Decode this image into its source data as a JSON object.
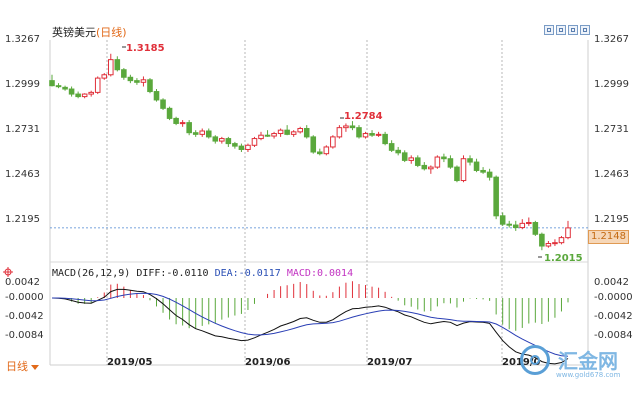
{
  "title": {
    "symbol": "英镑美元",
    "period": "(日线)"
  },
  "price_axis": [
    "1.3267",
    "1.2999",
    "1.2731",
    "1.2463",
    "1.2195"
  ],
  "current_price": "1.2148",
  "annotations": {
    "high1": "1.3185",
    "high2": "1.2784",
    "low": "1.2015"
  },
  "macd_header": {
    "params": "MACD(26,12,9)",
    "diff": "DIFF:-0.0110",
    "dea": "DEA:-0.0117",
    "macd": "MACD:0.0014"
  },
  "macd_axis": [
    "0.0042",
    "-0.0000",
    "-0.0042",
    "-0.0084"
  ],
  "dates": [
    "2019/05",
    "2019/06",
    "2019/07",
    "2019/0"
  ],
  "period_tab": "日线",
  "watermark": {
    "brand": "汇金网",
    "url": "www.gold678.com"
  },
  "colors": {
    "up": "#e0303a",
    "down": "#5aa83c",
    "diff_line": "#111111",
    "dea_line": "#2a3fb5",
    "grid": "#9a9a9a",
    "accent": "#e26a1a"
  },
  "chart_data": {
    "type": "candlestick",
    "title": "英镑美元(日线)",
    "ylim": [
      1.2015,
      1.3267
    ],
    "yticks": [
      1.3267,
      1.2999,
      1.2731,
      1.2463,
      1.2195
    ],
    "annotated_high": [
      1.3185,
      1.2784
    ],
    "annotated_low": 1.2015,
    "last_close": 1.2148,
    "x_labels": [
      "2019/05",
      "2019/06",
      "2019/07",
      "2019/0"
    ],
    "candles": [
      [
        1.3025,
        1.306,
        1.299,
        1.2995
      ],
      [
        1.2995,
        1.301,
        1.298,
        1.299
      ],
      [
        1.2985,
        1.2995,
        1.2965,
        1.2975
      ],
      [
        1.2975,
        1.299,
        1.293,
        1.2945
      ],
      [
        1.2945,
        1.296,
        1.292,
        1.293
      ],
      [
        1.293,
        1.295,
        1.292,
        1.2945
      ],
      [
        1.2945,
        1.2965,
        1.293,
        1.2955
      ],
      [
        1.2955,
        1.305,
        1.2945,
        1.304
      ],
      [
        1.304,
        1.307,
        1.303,
        1.306
      ],
      [
        1.306,
        1.3185,
        1.305,
        1.315
      ],
      [
        1.315,
        1.317,
        1.308,
        1.309
      ],
      [
        1.309,
        1.31,
        1.303,
        1.3045
      ],
      [
        1.3045,
        1.306,
        1.301,
        1.3025
      ],
      [
        1.3025,
        1.304,
        1.3,
        1.3015
      ],
      [
        1.3015,
        1.305,
        1.299,
        1.303
      ],
      [
        1.303,
        1.304,
        1.295,
        1.296
      ],
      [
        1.296,
        1.2975,
        1.29,
        1.291
      ],
      [
        1.291,
        1.292,
        1.285,
        1.286
      ],
      [
        1.286,
        1.287,
        1.279,
        1.28
      ],
      [
        1.28,
        1.281,
        1.276,
        1.277
      ],
      [
        1.277,
        1.279,
        1.275,
        1.2775
      ],
      [
        1.2775,
        1.279,
        1.27,
        1.2715
      ],
      [
        1.2715,
        1.273,
        1.269,
        1.2705
      ],
      [
        1.2705,
        1.274,
        1.269,
        1.2725
      ],
      [
        1.2725,
        1.274,
        1.268,
        1.269
      ],
      [
        1.269,
        1.27,
        1.265,
        1.2665
      ],
      [
        1.2665,
        1.269,
        1.265,
        1.268
      ],
      [
        1.268,
        1.269,
        1.263,
        1.265
      ],
      [
        1.265,
        1.266,
        1.262,
        1.2635
      ],
      [
        1.2635,
        1.265,
        1.26,
        1.2615
      ],
      [
        1.2615,
        1.265,
        1.26,
        1.264
      ],
      [
        1.264,
        1.269,
        1.263,
        1.268
      ],
      [
        1.268,
        1.272,
        1.267,
        1.27
      ],
      [
        1.27,
        1.273,
        1.269,
        1.2695
      ],
      [
        1.2695,
        1.272,
        1.268,
        1.271
      ],
      [
        1.271,
        1.274,
        1.269,
        1.273
      ],
      [
        1.273,
        1.276,
        1.27,
        1.2705
      ],
      [
        1.2705,
        1.273,
        1.269,
        1.272
      ],
      [
        1.272,
        1.275,
        1.271,
        1.274
      ],
      [
        1.274,
        1.276,
        1.268,
        1.269
      ],
      [
        1.269,
        1.27,
        1.259,
        1.26
      ],
      [
        1.26,
        1.262,
        1.258,
        1.259
      ],
      [
        1.259,
        1.264,
        1.258,
        1.263
      ],
      [
        1.263,
        1.27,
        1.262,
        1.269
      ],
      [
        1.269,
        1.276,
        1.268,
        1.2745
      ],
      [
        1.2745,
        1.277,
        1.272,
        1.2755
      ],
      [
        1.2755,
        1.2784,
        1.273,
        1.2745
      ],
      [
        1.2745,
        1.276,
        1.268,
        1.269
      ],
      [
        1.269,
        1.272,
        1.268,
        1.271
      ],
      [
        1.271,
        1.273,
        1.269,
        1.27
      ],
      [
        1.27,
        1.272,
        1.269,
        1.2705
      ],
      [
        1.2705,
        1.272,
        1.264,
        1.265
      ],
      [
        1.265,
        1.267,
        1.26,
        1.261
      ],
      [
        1.261,
        1.263,
        1.258,
        1.2595
      ],
      [
        1.2595,
        1.261,
        1.254,
        1.255
      ],
      [
        1.255,
        1.258,
        1.253,
        1.2565
      ],
      [
        1.2565,
        1.258,
        1.251,
        1.252
      ],
      [
        1.252,
        1.254,
        1.249,
        1.25
      ],
      [
        1.25,
        1.252,
        1.247,
        1.251
      ],
      [
        1.251,
        1.258,
        1.25,
        1.257
      ],
      [
        1.257,
        1.259,
        1.254,
        1.256
      ],
      [
        1.256,
        1.258,
        1.25,
        1.251
      ],
      [
        1.251,
        1.252,
        1.242,
        1.243
      ],
      [
        1.243,
        1.258,
        1.242,
        1.256
      ],
      [
        1.256,
        1.258,
        1.252,
        1.254
      ],
      [
        1.254,
        1.256,
        1.248,
        1.249
      ],
      [
        1.249,
        1.251,
        1.247,
        1.248
      ],
      [
        1.248,
        1.25,
        1.243,
        1.245
      ],
      [
        1.245,
        1.246,
        1.22,
        1.222
      ],
      [
        1.222,
        1.224,
        1.216,
        1.217
      ],
      [
        1.217,
        1.219,
        1.215,
        1.2165
      ],
      [
        1.2165,
        1.219,
        1.213,
        1.215
      ],
      [
        1.215,
        1.22,
        1.214,
        1.2175
      ],
      [
        1.2175,
        1.221,
        1.216,
        1.218
      ],
      [
        1.218,
        1.219,
        1.21,
        1.211
      ],
      [
        1.211,
        1.212,
        1.2015,
        1.204
      ],
      [
        1.204,
        1.207,
        1.203,
        1.2055
      ],
      [
        1.2055,
        1.208,
        1.204,
        1.206
      ],
      [
        1.206,
        1.21,
        1.205,
        1.209
      ],
      [
        1.209,
        1.219,
        1.208,
        1.2148
      ]
    ],
    "macd_yticks": [
      0.0042,
      0.0,
      -0.0042,
      -0.0084
    ]
  }
}
